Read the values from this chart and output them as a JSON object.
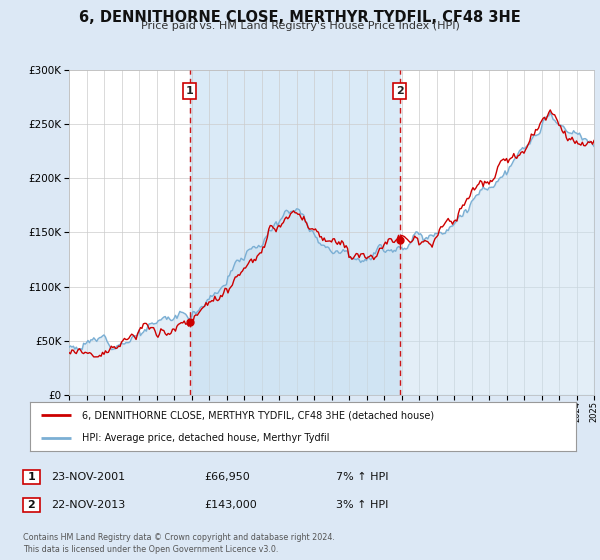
{
  "title": "6, DENNITHORNE CLOSE, MERTHYR TYDFIL, CF48 3HE",
  "subtitle": "Price paid vs. HM Land Registry's House Price Index (HPI)",
  "legend_line1": "6, DENNITHORNE CLOSE, MERTHYR TYDFIL, CF48 3HE (detached house)",
  "legend_line2": "HPI: Average price, detached house, Merthyr Tydfil",
  "sale1_date": "23-NOV-2001",
  "sale1_price": "£66,950",
  "sale1_hpi": "7% ↑ HPI",
  "sale2_date": "22-NOV-2013",
  "sale2_price": "£143,000",
  "sale2_hpi": "3% ↑ HPI",
  "copyright_text": "Contains HM Land Registry data © Crown copyright and database right 2024.\nThis data is licensed under the Open Government Licence v3.0.",
  "sale1_year": 2001.9,
  "sale1_value": 66950,
  "sale2_year": 2013.9,
  "sale2_value": 143000,
  "property_color": "#cc0000",
  "hpi_color": "#7bafd4",
  "hpi_fill_color": "#c8dff0",
  "background_color": "#dce8f5",
  "plot_bg_color": "#ffffff",
  "span_color": "#daeaf7",
  "ylim": [
    0,
    300000
  ],
  "xmin": 1995,
  "xmax": 2025,
  "yticks": [
    0,
    50000,
    100000,
    150000,
    200000,
    250000,
    300000
  ]
}
